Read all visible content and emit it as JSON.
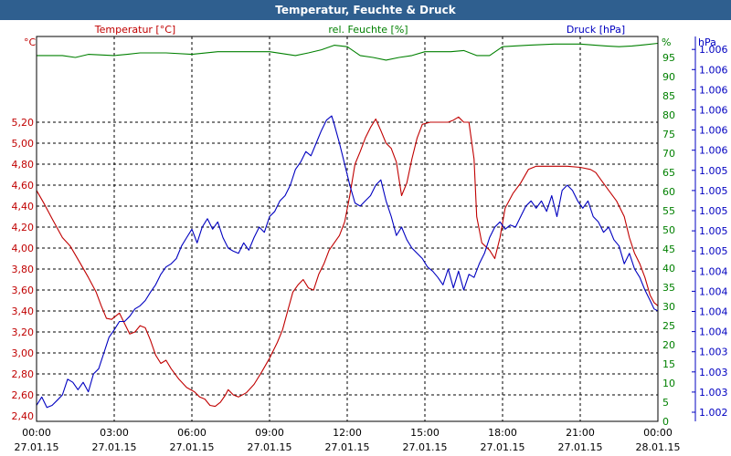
{
  "chart_data": {
    "type": "line",
    "title": "Temperatur, Feuchte & Druck",
    "axes": {
      "temp": {
        "label": "Temperatur [°C]",
        "unit": "°C",
        "min": 2.4,
        "max": 5.4,
        "color": "#c00000",
        "ticks": [
          "2,40",
          "2,60",
          "2,80",
          "3,00",
          "3,20",
          "3,40",
          "3,60",
          "3,80",
          "4,00",
          "4,20",
          "4,40",
          "4,60",
          "4,80",
          "5,00",
          "5,20"
        ]
      },
      "hum": {
        "label": "rel. Feuchte [%]",
        "unit": "%",
        "min": 0,
        "max": 100,
        "color": "#008000",
        "ticks": [
          "0",
          "5",
          "10",
          "15",
          "20",
          "25",
          "30",
          "35",
          "40",
          "45",
          "50",
          "55",
          "60",
          "65",
          "70",
          "75",
          "80",
          "85",
          "90",
          "95"
        ]
      },
      "press": {
        "label": "Druck [hPa]",
        "unit": "hPa",
        "color": "#0000c0",
        "ticks": [
          "1.002",
          "1.003",
          "1.003",
          "1.003",
          "1.004",
          "1.004",
          "1.004",
          "1.004",
          "1.005",
          "1.005",
          "1.005",
          "1.005",
          "1.005",
          "1.006",
          "1.006",
          "1.006",
          "1.006",
          "1.006",
          "1.006"
        ]
      }
    },
    "x_ticks": [
      {
        "time": "00:00",
        "date": "27.01.15"
      },
      {
        "time": "03:00",
        "date": "27.01.15"
      },
      {
        "time": "06:00",
        "date": "27.01.15"
      },
      {
        "time": "09:00",
        "date": "27.01.15"
      },
      {
        "time": "12:00",
        "date": "27.01.15"
      },
      {
        "time": "15:00",
        "date": "27.01.15"
      },
      {
        "time": "18:00",
        "date": "27.01.15"
      },
      {
        "time": "21:00",
        "date": "27.01.15"
      },
      {
        "time": "00:00",
        "date": "28.01.15"
      }
    ],
    "x_range_hours": [
      0,
      24
    ],
    "grid": true,
    "series": [
      {
        "name": "Temperatur [°C]",
        "axis": "temp",
        "color": "#c00000",
        "points": [
          [
            0,
            4.55
          ],
          [
            0.3,
            4.42
          ],
          [
            0.6,
            4.28
          ],
          [
            1.0,
            4.1
          ],
          [
            1.3,
            4.02
          ],
          [
            1.7,
            3.85
          ],
          [
            2.0,
            3.72
          ],
          [
            2.3,
            3.58
          ],
          [
            2.5,
            3.45
          ],
          [
            2.7,
            3.33
          ],
          [
            2.9,
            3.32
          ],
          [
            3.1,
            3.36
          ],
          [
            3.2,
            3.38
          ],
          [
            3.4,
            3.28
          ],
          [
            3.6,
            3.18
          ],
          [
            3.8,
            3.2
          ],
          [
            4.0,
            3.26
          ],
          [
            4.2,
            3.24
          ],
          [
            4.4,
            3.12
          ],
          [
            4.6,
            2.98
          ],
          [
            4.8,
            2.9
          ],
          [
            5.0,
            2.93
          ],
          [
            5.2,
            2.85
          ],
          [
            5.5,
            2.75
          ],
          [
            5.8,
            2.67
          ],
          [
            6.1,
            2.63
          ],
          [
            6.3,
            2.58
          ],
          [
            6.5,
            2.56
          ],
          [
            6.7,
            2.5
          ],
          [
            6.9,
            2.49
          ],
          [
            7.1,
            2.53
          ],
          [
            7.3,
            2.6
          ],
          [
            7.4,
            2.65
          ],
          [
            7.6,
            2.6
          ],
          [
            7.8,
            2.58
          ],
          [
            8.1,
            2.62
          ],
          [
            8.4,
            2.7
          ],
          [
            8.7,
            2.82
          ],
          [
            9.0,
            2.95
          ],
          [
            9.3,
            3.1
          ],
          [
            9.5,
            3.22
          ],
          [
            9.7,
            3.4
          ],
          [
            9.9,
            3.58
          ],
          [
            10.1,
            3.65
          ],
          [
            10.3,
            3.7
          ],
          [
            10.5,
            3.62
          ],
          [
            10.7,
            3.6
          ],
          [
            10.9,
            3.75
          ],
          [
            11.1,
            3.85
          ],
          [
            11.3,
            3.98
          ],
          [
            11.5,
            4.05
          ],
          [
            11.7,
            4.12
          ],
          [
            11.9,
            4.25
          ],
          [
            12.1,
            4.5
          ],
          [
            12.3,
            4.8
          ],
          [
            12.5,
            4.92
          ],
          [
            12.7,
            5.05
          ],
          [
            12.9,
            5.15
          ],
          [
            13.1,
            5.23
          ],
          [
            13.3,
            5.12
          ],
          [
            13.5,
            5.0
          ],
          [
            13.7,
            4.95
          ],
          [
            13.9,
            4.82
          ],
          [
            14.1,
            4.5
          ],
          [
            14.3,
            4.62
          ],
          [
            14.5,
            4.85
          ],
          [
            14.7,
            5.05
          ],
          [
            14.9,
            5.18
          ],
          [
            15.2,
            5.2
          ],
          [
            15.5,
            5.2
          ],
          [
            15.9,
            5.2
          ],
          [
            16.1,
            5.22
          ],
          [
            16.3,
            5.25
          ],
          [
            16.5,
            5.2
          ],
          [
            16.7,
            5.2
          ],
          [
            16.9,
            4.85
          ],
          [
            17.0,
            4.3
          ],
          [
            17.2,
            4.05
          ],
          [
            17.5,
            3.98
          ],
          [
            17.7,
            3.9
          ],
          [
            17.9,
            4.1
          ],
          [
            18.1,
            4.38
          ],
          [
            18.4,
            4.52
          ],
          [
            18.7,
            4.62
          ],
          [
            19.0,
            4.75
          ],
          [
            19.3,
            4.78
          ],
          [
            19.6,
            4.78
          ],
          [
            20.0,
            4.78
          ],
          [
            20.5,
            4.78
          ],
          [
            21.0,
            4.77
          ],
          [
            21.4,
            4.75
          ],
          [
            21.6,
            4.72
          ],
          [
            21.8,
            4.65
          ],
          [
            22.1,
            4.55
          ],
          [
            22.4,
            4.45
          ],
          [
            22.7,
            4.3
          ],
          [
            22.9,
            4.1
          ],
          [
            23.1,
            3.95
          ],
          [
            23.3,
            3.85
          ],
          [
            23.5,
            3.72
          ],
          [
            23.7,
            3.55
          ],
          [
            23.85,
            3.48
          ],
          [
            24.0,
            3.45
          ]
        ]
      },
      {
        "name": "rel. Feuchte [%]",
        "axis": "hum",
        "color": "#008000",
        "points": [
          [
            0,
            95.5
          ],
          [
            1,
            95.5
          ],
          [
            1.5,
            95.0
          ],
          [
            2,
            95.8
          ],
          [
            3,
            95.5
          ],
          [
            3.5,
            95.8
          ],
          [
            4,
            96.2
          ],
          [
            5,
            96.2
          ],
          [
            6,
            95.8
          ],
          [
            7,
            96.5
          ],
          [
            8,
            96.5
          ],
          [
            9,
            96.5
          ],
          [
            9.5,
            96.0
          ],
          [
            10,
            95.5
          ],
          [
            10.5,
            96.2
          ],
          [
            11,
            97.0
          ],
          [
            11.5,
            98.2
          ],
          [
            12,
            97.8
          ],
          [
            12.5,
            95.5
          ],
          [
            13,
            95.0
          ],
          [
            13.5,
            94.3
          ],
          [
            14,
            95.0
          ],
          [
            14.5,
            95.5
          ],
          [
            15,
            96.5
          ],
          [
            16,
            96.5
          ],
          [
            16.5,
            96.8
          ],
          [
            17,
            95.5
          ],
          [
            17.5,
            95.5
          ],
          [
            18,
            97.8
          ],
          [
            19,
            98.2
          ],
          [
            20,
            98.5
          ],
          [
            21,
            98.5
          ],
          [
            22,
            98.0
          ],
          [
            22.5,
            97.8
          ],
          [
            23,
            98.0
          ],
          [
            23.5,
            98.3
          ],
          [
            24,
            98.7
          ]
        ]
      },
      {
        "name": "Druck [hPa]",
        "axis": "press",
        "color": "#0000c0",
        "points": [
          [
            0,
            2.5
          ],
          [
            0.2,
            2.58
          ],
          [
            0.4,
            2.48
          ],
          [
            0.6,
            2.5
          ],
          [
            0.8,
            2.55
          ],
          [
            1.0,
            2.6
          ],
          [
            1.2,
            2.75
          ],
          [
            1.4,
            2.72
          ],
          [
            1.6,
            2.65
          ],
          [
            1.8,
            2.72
          ],
          [
            2.0,
            2.63
          ],
          [
            2.2,
            2.8
          ],
          [
            2.4,
            2.85
          ],
          [
            2.6,
            3.0
          ],
          [
            2.8,
            3.15
          ],
          [
            3.0,
            3.22
          ],
          [
            3.2,
            3.3
          ],
          [
            3.4,
            3.3
          ],
          [
            3.6,
            3.35
          ],
          [
            3.8,
            3.42
          ],
          [
            4.0,
            3.45
          ],
          [
            4.2,
            3.5
          ],
          [
            4.4,
            3.58
          ],
          [
            4.6,
            3.65
          ],
          [
            4.8,
            3.75
          ],
          [
            5.0,
            3.82
          ],
          [
            5.2,
            3.85
          ],
          [
            5.4,
            3.9
          ],
          [
            5.6,
            4.02
          ],
          [
            5.8,
            4.1
          ],
          [
            6.0,
            4.18
          ],
          [
            6.2,
            4.05
          ],
          [
            6.4,
            4.2
          ],
          [
            6.6,
            4.28
          ],
          [
            6.8,
            4.18
          ],
          [
            7.0,
            4.25
          ],
          [
            7.2,
            4.1
          ],
          [
            7.4,
            4.0
          ],
          [
            7.6,
            3.97
          ],
          [
            7.8,
            3.95
          ],
          [
            8.0,
            4.05
          ],
          [
            8.2,
            3.98
          ],
          [
            8.4,
            4.1
          ],
          [
            8.6,
            4.2
          ],
          [
            8.8,
            4.15
          ],
          [
            9.0,
            4.3
          ],
          [
            9.2,
            4.35
          ],
          [
            9.4,
            4.45
          ],
          [
            9.6,
            4.5
          ],
          [
            9.8,
            4.6
          ],
          [
            10.0,
            4.75
          ],
          [
            10.2,
            4.82
          ],
          [
            10.4,
            4.92
          ],
          [
            10.6,
            4.88
          ],
          [
            10.8,
            5.0
          ],
          [
            11.0,
            5.12
          ],
          [
            11.2,
            5.22
          ],
          [
            11.4,
            5.26
          ],
          [
            11.5,
            5.18
          ],
          [
            11.7,
            5.0
          ],
          [
            11.9,
            4.8
          ],
          [
            12.1,
            4.6
          ],
          [
            12.3,
            4.43
          ],
          [
            12.5,
            4.4
          ],
          [
            12.7,
            4.45
          ],
          [
            12.9,
            4.5
          ],
          [
            13.1,
            4.6
          ],
          [
            13.3,
            4.65
          ],
          [
            13.5,
            4.45
          ],
          [
            13.7,
            4.3
          ],
          [
            13.9,
            4.12
          ],
          [
            14.1,
            4.2
          ],
          [
            14.3,
            4.08
          ],
          [
            14.5,
            4.0
          ],
          [
            14.7,
            3.95
          ],
          [
            14.9,
            3.9
          ],
          [
            15.1,
            3.82
          ],
          [
            15.3,
            3.78
          ],
          [
            15.5,
            3.72
          ],
          [
            15.7,
            3.65
          ],
          [
            15.9,
            3.8
          ],
          [
            16.1,
            3.62
          ],
          [
            16.3,
            3.78
          ],
          [
            16.5,
            3.6
          ],
          [
            16.7,
            3.75
          ],
          [
            16.9,
            3.72
          ],
          [
            17.1,
            3.85
          ],
          [
            17.3,
            3.95
          ],
          [
            17.5,
            4.1
          ],
          [
            17.7,
            4.2
          ],
          [
            17.9,
            4.25
          ],
          [
            18.1,
            4.18
          ],
          [
            18.3,
            4.22
          ],
          [
            18.5,
            4.2
          ],
          [
            18.7,
            4.3
          ],
          [
            18.9,
            4.4
          ],
          [
            19.1,
            4.45
          ],
          [
            19.3,
            4.38
          ],
          [
            19.5,
            4.45
          ],
          [
            19.7,
            4.35
          ],
          [
            19.9,
            4.5
          ],
          [
            20.1,
            4.3
          ],
          [
            20.3,
            4.55
          ],
          [
            20.5,
            4.6
          ],
          [
            20.7,
            4.55
          ],
          [
            20.9,
            4.45
          ],
          [
            21.1,
            4.38
          ],
          [
            21.3,
            4.45
          ],
          [
            21.5,
            4.3
          ],
          [
            21.7,
            4.25
          ],
          [
            21.9,
            4.15
          ],
          [
            22.1,
            4.2
          ],
          [
            22.3,
            4.08
          ],
          [
            22.5,
            4.02
          ],
          [
            22.7,
            3.85
          ],
          [
            22.9,
            3.95
          ],
          [
            23.1,
            3.8
          ],
          [
            23.3,
            3.72
          ],
          [
            23.5,
            3.6
          ],
          [
            23.7,
            3.5
          ],
          [
            23.85,
            3.42
          ],
          [
            24.0,
            3.4
          ]
        ]
      }
    ]
  }
}
